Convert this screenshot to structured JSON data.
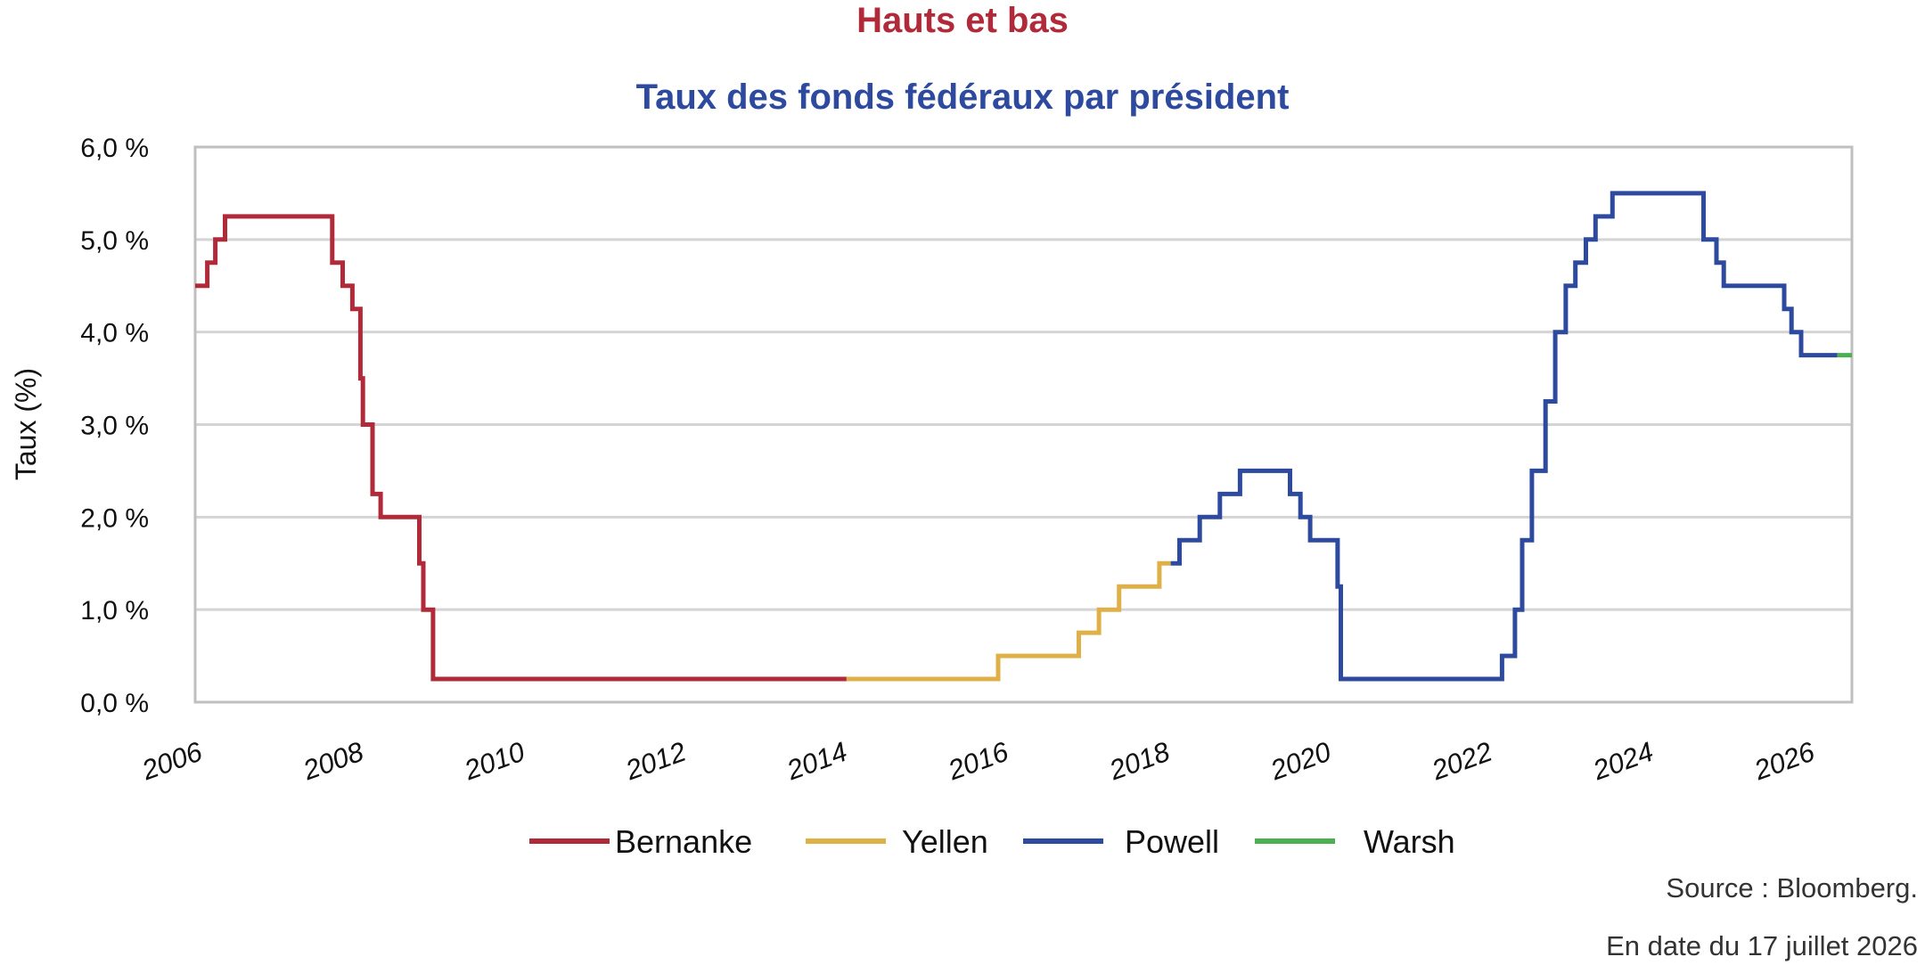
{
  "chart_data": {
    "type": "line",
    "title": "Hauts et bas",
    "subtitle": "Taux des fonds fédéraux par président",
    "ylabel": "Taux (%)",
    "xlabel": "",
    "xlim": [
      2006.0,
      2026.55
    ],
    "ylim": [
      0,
      6
    ],
    "y_ticks": [
      "0,0 %",
      "1,0 %",
      "2,0 %",
      "3,0 %",
      "4,0 %",
      "5,0 %",
      "6,0 %"
    ],
    "x_ticks": [
      "2006",
      "2008",
      "2010",
      "2012",
      "2014",
      "2016",
      "2018",
      "2020",
      "2022",
      "2024",
      "2026"
    ],
    "grid": true,
    "legend_position": "bottom",
    "series": [
      {
        "name": "Bernanke",
        "color": "#b02a3a",
        "steps": [
          [
            2006.0,
            4.5
          ],
          [
            2006.15,
            4.75
          ],
          [
            2006.25,
            5.0
          ],
          [
            2006.37,
            5.25
          ],
          [
            2007.7,
            4.75
          ],
          [
            2007.83,
            4.5
          ],
          [
            2007.95,
            4.25
          ],
          [
            2008.05,
            3.5
          ],
          [
            2008.08,
            3.0
          ],
          [
            2008.2,
            2.25
          ],
          [
            2008.3,
            2.0
          ],
          [
            2008.78,
            1.5
          ],
          [
            2008.83,
            1.0
          ],
          [
            2008.95,
            0.25
          ],
          [
            2014.08,
            0.25
          ]
        ]
      },
      {
        "name": "Yellen",
        "color": "#e0b048",
        "steps": [
          [
            2014.08,
            0.25
          ],
          [
            2015.96,
            0.5
          ],
          [
            2016.96,
            0.75
          ],
          [
            2017.21,
            1.0
          ],
          [
            2017.46,
            1.25
          ],
          [
            2017.96,
            1.5
          ],
          [
            2018.1,
            1.5
          ]
        ]
      },
      {
        "name": "Powell",
        "color": "#2d4a9e",
        "steps": [
          [
            2018.1,
            1.5
          ],
          [
            2018.21,
            1.75
          ],
          [
            2018.46,
            2.0
          ],
          [
            2018.71,
            2.25
          ],
          [
            2018.96,
            2.5
          ],
          [
            2019.58,
            2.25
          ],
          [
            2019.71,
            2.0
          ],
          [
            2019.83,
            1.75
          ],
          [
            2020.17,
            1.25
          ],
          [
            2020.21,
            0.25
          ],
          [
            2022.21,
            0.5
          ],
          [
            2022.37,
            1.0
          ],
          [
            2022.46,
            1.75
          ],
          [
            2022.58,
            2.5
          ],
          [
            2022.75,
            3.25
          ],
          [
            2022.87,
            4.0
          ],
          [
            2023.0,
            4.5
          ],
          [
            2023.12,
            4.75
          ],
          [
            2023.25,
            5.0
          ],
          [
            2023.37,
            5.25
          ],
          [
            2023.58,
            5.5
          ],
          [
            2024.71,
            5.0
          ],
          [
            2024.87,
            4.75
          ],
          [
            2024.96,
            4.5
          ],
          [
            2025.71,
            4.25
          ],
          [
            2025.8,
            4.0
          ],
          [
            2025.92,
            3.75
          ],
          [
            2026.37,
            3.75
          ]
        ]
      },
      {
        "name": "Warsh",
        "color": "#4caf50",
        "steps": [
          [
            2026.37,
            3.75
          ],
          [
            2026.55,
            3.75
          ]
        ]
      }
    ]
  },
  "source_note": "Source : Bloomberg.",
  "date_note": "En date du 17 juillet 2026"
}
